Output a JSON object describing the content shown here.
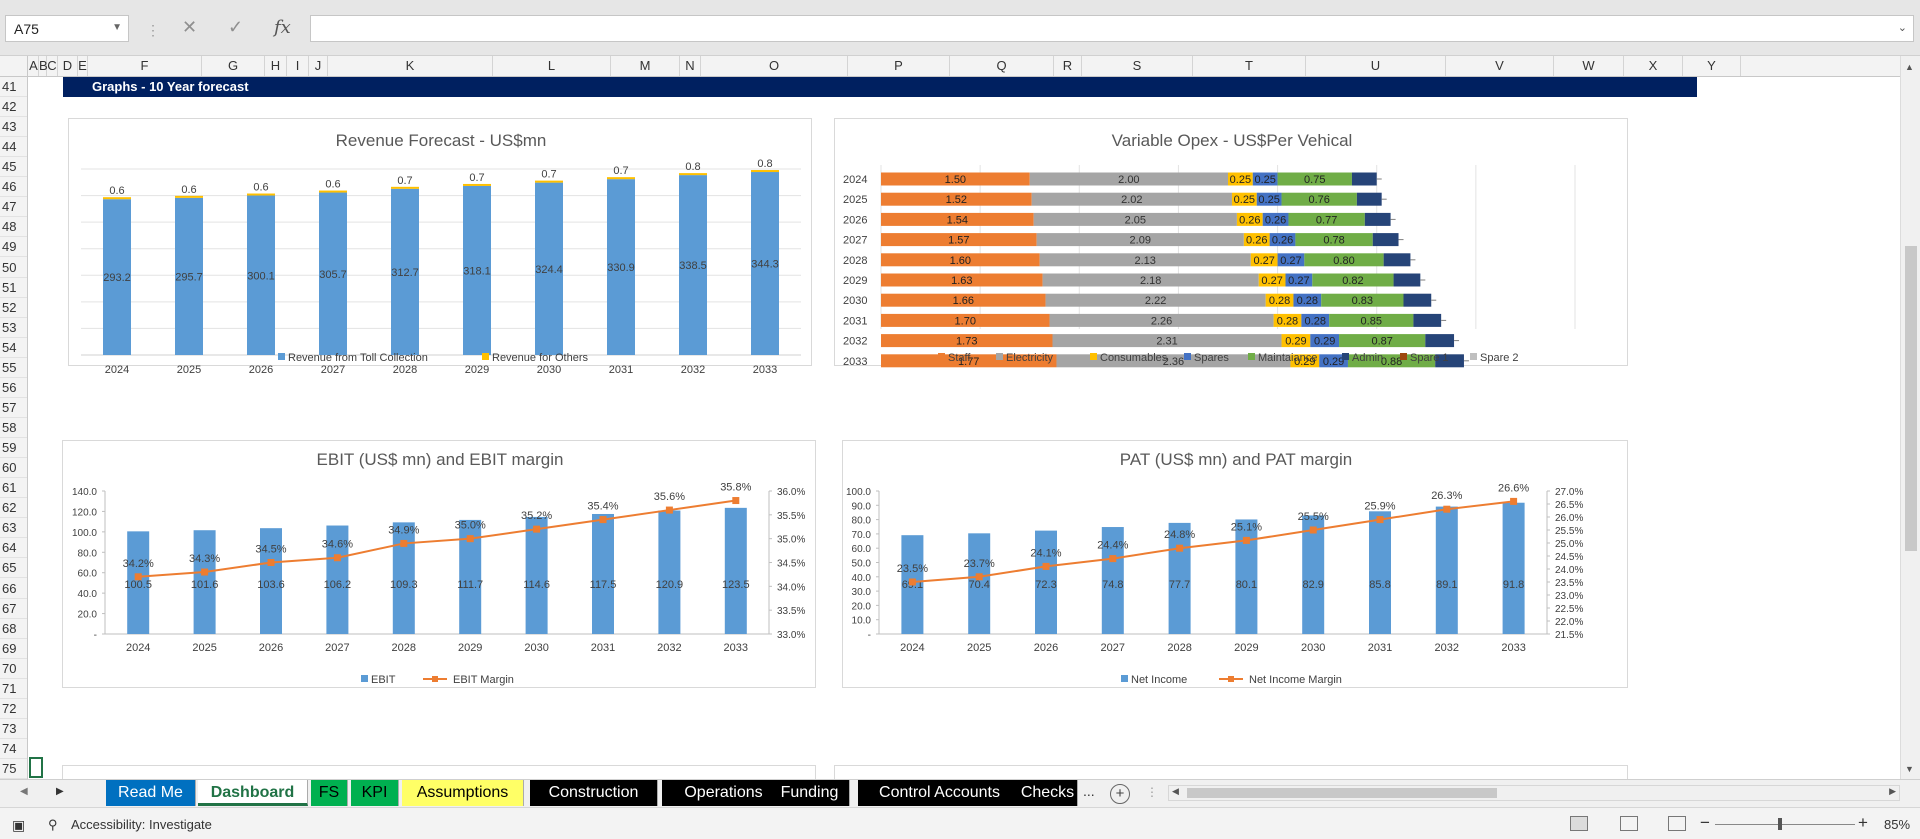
{
  "formula_bar": {
    "name_box": "A75",
    "cancel_icon": "✕",
    "enter_icon": "✓",
    "function_icon": "fx",
    "formula": ""
  },
  "columns": [
    "A",
    "B",
    "C",
    "D",
    "E",
    "F",
    "G",
    "H",
    "I",
    "J",
    "K",
    "L",
    "M",
    "N",
    "O",
    "P",
    "Q",
    "R",
    "S",
    "T",
    "U",
    "V",
    "W",
    "X",
    "Y"
  ],
  "rows": [
    "41",
    "42",
    "43",
    "44",
    "45",
    "46",
    "47",
    "48",
    "49",
    "50",
    "51",
    "52",
    "53",
    "54",
    "55",
    "56",
    "57",
    "58",
    "59",
    "60",
    "61",
    "62",
    "63",
    "64",
    "65",
    "66",
    "67",
    "68",
    "69",
    "70",
    "71",
    "72",
    "73",
    "74",
    "75"
  ],
  "section_title": "Graphs - 10 Year forecast",
  "chart_data": [
    {
      "type": "bar",
      "stacked": true,
      "title": "Revenue Forecast - US$mn",
      "categories": [
        "2024",
        "2025",
        "2026",
        "2027",
        "2028",
        "2029",
        "2030",
        "2031",
        "2032",
        "2033"
      ],
      "series": [
        {
          "name": "Revenue from Toll Collection",
          "color": "#5b9bd5",
          "values": [
            293.2,
            295.7,
            300.1,
            305.7,
            312.7,
            318.1,
            324.4,
            330.9,
            338.5,
            344.3
          ]
        },
        {
          "name": "Revenue for Others",
          "color": "#ffc000",
          "values": [
            0.6,
            0.6,
            0.6,
            0.6,
            0.7,
            0.7,
            0.7,
            0.7,
            0.8,
            0.8
          ]
        }
      ],
      "legend": "bottom",
      "grid": true
    },
    {
      "type": "bar",
      "orientation": "horizontal",
      "stacked": true,
      "title": "Variable Opex - US$Per Vehical",
      "categories": [
        "2024",
        "2025",
        "2026",
        "2027",
        "2028",
        "2029",
        "2030",
        "2031",
        "2032",
        "2033"
      ],
      "series": [
        {
          "name": "Staff",
          "color": "#ed7d31",
          "values": [
            1.5,
            1.52,
            1.54,
            1.57,
            1.6,
            1.63,
            1.66,
            1.7,
            1.73,
            1.77
          ],
          "labels": [
            "1.50",
            "1.52",
            "1.54",
            "1.57",
            "1.60",
            "1.63",
            "1.66",
            "1.70",
            "1.73",
            "1.77"
          ]
        },
        {
          "name": "Electricity",
          "color": "#a5a5a5",
          "values": [
            2.0,
            2.02,
            2.05,
            2.09,
            2.13,
            2.18,
            2.22,
            2.26,
            2.31,
            2.36
          ],
          "labels": [
            "2.00",
            "2.02",
            "2.05",
            "2.09",
            "2.13",
            "2.18",
            "2.22",
            "2.26",
            "2.31",
            "2.36"
          ]
        },
        {
          "name": "Consumables",
          "color": "#ffc000",
          "values": [
            0.25,
            0.25,
            0.26,
            0.26,
            0.27,
            0.27,
            0.28,
            0.28,
            0.29,
            0.29
          ],
          "labels": [
            "0.25",
            "0.25",
            "0.26",
            "0.26",
            "0.27",
            "0.27",
            "0.28",
            "0.28",
            "0.29",
            "0.29"
          ]
        },
        {
          "name": "Spares",
          "color": "#4472c4",
          "values": [
            0.25,
            0.25,
            0.26,
            0.26,
            0.27,
            0.27,
            0.28,
            0.28,
            0.29,
            0.29
          ],
          "labels": [
            "0.25",
            "0.25",
            "0.26",
            "0.26",
            "0.27",
            "0.27",
            "0.28",
            "0.28",
            "0.29",
            "0.29"
          ]
        },
        {
          "name": "Maintaiance",
          "color": "#70ad47",
          "values": [
            0.75,
            0.76,
            0.77,
            0.78,
            0.8,
            0.82,
            0.83,
            0.85,
            0.87,
            0.88
          ],
          "labels": [
            "0.75",
            "0.76",
            "0.77",
            "0.78",
            "0.80",
            "0.82",
            "0.83",
            "0.85",
            "0.87",
            "0.88"
          ]
        },
        {
          "name": "Admin",
          "color": "#264478",
          "values": [
            0.25,
            0.25,
            0.26,
            0.26,
            0.27,
            0.27,
            0.28,
            0.28,
            0.29,
            0.29
          ],
          "labels": [
            "",
            "",
            "",
            "",
            "",
            "",
            "",
            "",
            "",
            ""
          ]
        },
        {
          "name": "Spare 1",
          "color": "#9e480e",
          "values": [
            0,
            0,
            0,
            0,
            0,
            0,
            0,
            0,
            0,
            0
          ]
        },
        {
          "name": "Spare 2",
          "color": "#bfbfbf",
          "values": [
            0,
            0,
            0,
            0,
            0,
            0,
            0,
            0,
            0,
            0
          ]
        }
      ],
      "legend": "bottom",
      "grid": true
    },
    {
      "type": "bar",
      "combo": "bar+line",
      "title": "EBIT (US$ mn) and EBIT margin",
      "categories": [
        "2024",
        "2025",
        "2026",
        "2027",
        "2028",
        "2029",
        "2030",
        "2031",
        "2032",
        "2033"
      ],
      "series": [
        {
          "name": "EBIT",
          "color": "#5b9bd5",
          "axis": "left",
          "values": [
            100.5,
            101.6,
            103.6,
            106.2,
            109.3,
            111.7,
            114.6,
            117.5,
            120.9,
            123.5
          ]
        },
        {
          "name": "EBIT Margin",
          "color": "#ed7d31",
          "axis": "right",
          "values": [
            34.2,
            34.3,
            34.5,
            34.6,
            34.9,
            35.0,
            35.2,
            35.4,
            35.6,
            35.8
          ],
          "labels": [
            "34.2%",
            "34.3%",
            "34.5%",
            "34.6%",
            "34.9%",
            "35.0%",
            "35.2%",
            "35.4%",
            "35.6%",
            "35.8%"
          ]
        }
      ],
      "ylim": [
        0,
        140
      ],
      "y_ticks": [
        "-",
        "20.0",
        "40.0",
        "60.0",
        "80.0",
        "100.0",
        "120.0",
        "140.0"
      ],
      "y2lim": [
        33.0,
        36.0
      ],
      "y2_ticks": [
        "33.0%",
        "33.5%",
        "34.0%",
        "34.5%",
        "35.0%",
        "35.5%",
        "36.0%"
      ],
      "legend": "bottom",
      "grid": false
    },
    {
      "type": "bar",
      "combo": "bar+line",
      "title": "PAT (US$ mn) and PAT margin",
      "categories": [
        "2024",
        "2025",
        "2026",
        "2027",
        "2028",
        "2029",
        "2030",
        "2031",
        "2032",
        "2033"
      ],
      "series": [
        {
          "name": "Net Income",
          "color": "#5b9bd5",
          "axis": "left",
          "values": [
            69.1,
            70.4,
            72.3,
            74.8,
            77.7,
            80.1,
            82.9,
            85.8,
            89.1,
            91.8
          ]
        },
        {
          "name": "Net Income Margin",
          "color": "#ed7d31",
          "axis": "right",
          "values": [
            23.5,
            23.7,
            24.1,
            24.4,
            24.8,
            25.1,
            25.5,
            25.9,
            26.3,
            26.6
          ],
          "labels": [
            "23.5%",
            "23.7%",
            "24.1%",
            "24.4%",
            "24.8%",
            "25.1%",
            "25.5%",
            "25.9%",
            "26.3%",
            "26.6%"
          ]
        }
      ],
      "ylim": [
        0,
        100
      ],
      "y_ticks": [
        "-",
        "10.0",
        "20.0",
        "30.0",
        "40.0",
        "50.0",
        "60.0",
        "70.0",
        "80.0",
        "90.0",
        "100.0"
      ],
      "y2lim": [
        21.5,
        27.0
      ],
      "y2_ticks": [
        "21.5%",
        "22.0%",
        "22.5%",
        "23.0%",
        "23.5%",
        "24.0%",
        "24.5%",
        "25.0%",
        "25.5%",
        "26.0%",
        "26.5%",
        "27.0%"
      ],
      "legend": "bottom",
      "grid": false
    }
  ],
  "sheet_tabs": [
    {
      "label": "Read Me",
      "bg": "#0070c0",
      "fg": "#ffffff",
      "active": false
    },
    {
      "label": "Dashboard",
      "bg": "#ffffff",
      "fg": "#217346",
      "active": true
    },
    {
      "label": "FS",
      "bg": "#00b050",
      "fg": "#000000",
      "active": false
    },
    {
      "label": "KPI",
      "bg": "#00b050",
      "fg": "#000000",
      "active": false
    },
    {
      "label": "Assumptions",
      "bg": "#ffff66",
      "fg": "#000000",
      "active": false
    },
    {
      "label": "Construction",
      "bg": "#000000",
      "fg": "#ffffff",
      "active": false
    },
    {
      "label": "Operations",
      "bg": "#000000",
      "fg": "#ffffff",
      "active": false
    },
    {
      "label": "Funding",
      "bg": "#000000",
      "fg": "#ffffff",
      "active": false
    },
    {
      "label": "Control Accounts",
      "bg": "#000000",
      "fg": "#ffffff",
      "active": false
    },
    {
      "label": "Checks",
      "bg": "#000000",
      "fg": "#ffffff",
      "active": false
    }
  ],
  "tabs_more": "...",
  "add_sheet": "+",
  "status": {
    "accessibility": "Accessibility: Investigate",
    "zoom_out": "−",
    "zoom_in": "+",
    "zoom": "85%"
  }
}
